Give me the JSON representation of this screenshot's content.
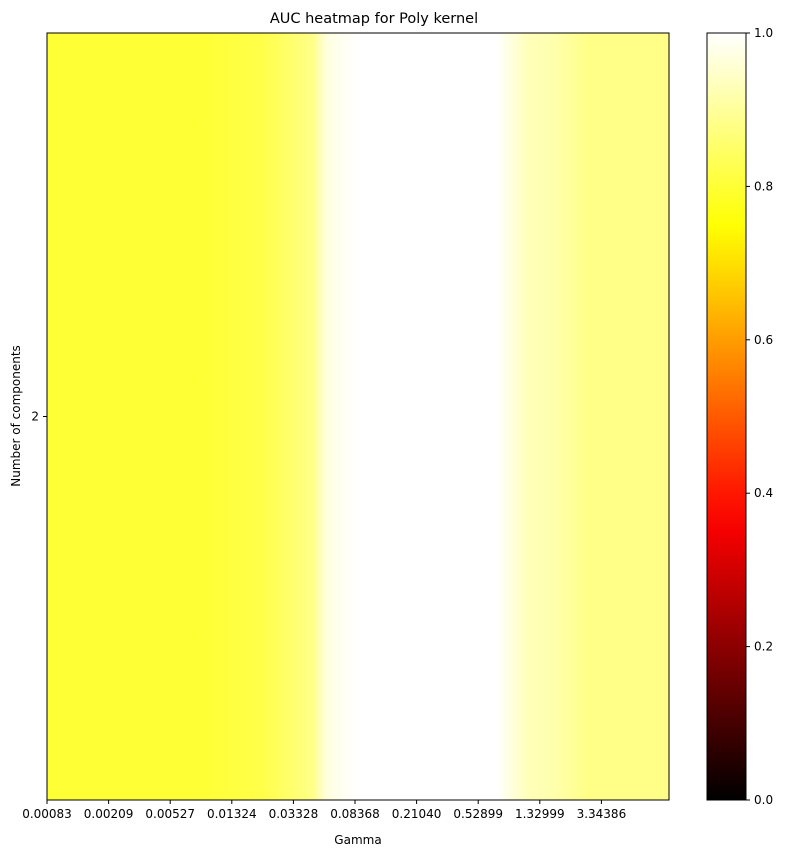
{
  "chart_data": {
    "type": "heatmap",
    "title": "AUC heatmap for Poly kernel",
    "xlabel": "Gamma",
    "ylabel": "Number of components",
    "x_tick_labels": [
      "0.00083",
      "0.00209",
      "0.00527",
      "0.01324",
      "0.03328",
      "0.08368",
      "0.21040",
      "0.52899",
      "1.32999",
      "3.34386"
    ],
    "y_categories": [
      "2"
    ],
    "colormap": "hot",
    "vmin": 0.0,
    "vmax": 1.0,
    "interpolation": "smooth",
    "gradient": [
      {
        "gamma_index": 0,
        "auc": 0.8
      },
      {
        "gamma_index": 2.5,
        "auc": 0.8
      },
      {
        "gamma_index": 3.5,
        "auc": 0.82
      },
      {
        "gamma_index": 4.3,
        "auc": 0.88
      },
      {
        "gamma_index": 4.55,
        "auc": 0.97
      },
      {
        "gamma_index": 5,
        "auc": 1.0
      },
      {
        "gamma_index": 7.3,
        "auc": 1.0
      },
      {
        "gamma_index": 7.8,
        "auc": 0.93
      },
      {
        "gamma_index": 8.2,
        "auc": 0.92
      },
      {
        "gamma_index": 8.8,
        "auc": 0.88
      },
      {
        "gamma_index": 10.5,
        "auc": 0.88
      }
    ],
    "colorbar": {
      "ticks": [
        0.0,
        0.2,
        0.4,
        0.6,
        0.8,
        1.0
      ],
      "tick_labels": [
        "0.0",
        "0.2",
        "0.4",
        "0.6",
        "0.8",
        "1.0"
      ]
    },
    "legend": "colorbar-right",
    "grid": false
  }
}
